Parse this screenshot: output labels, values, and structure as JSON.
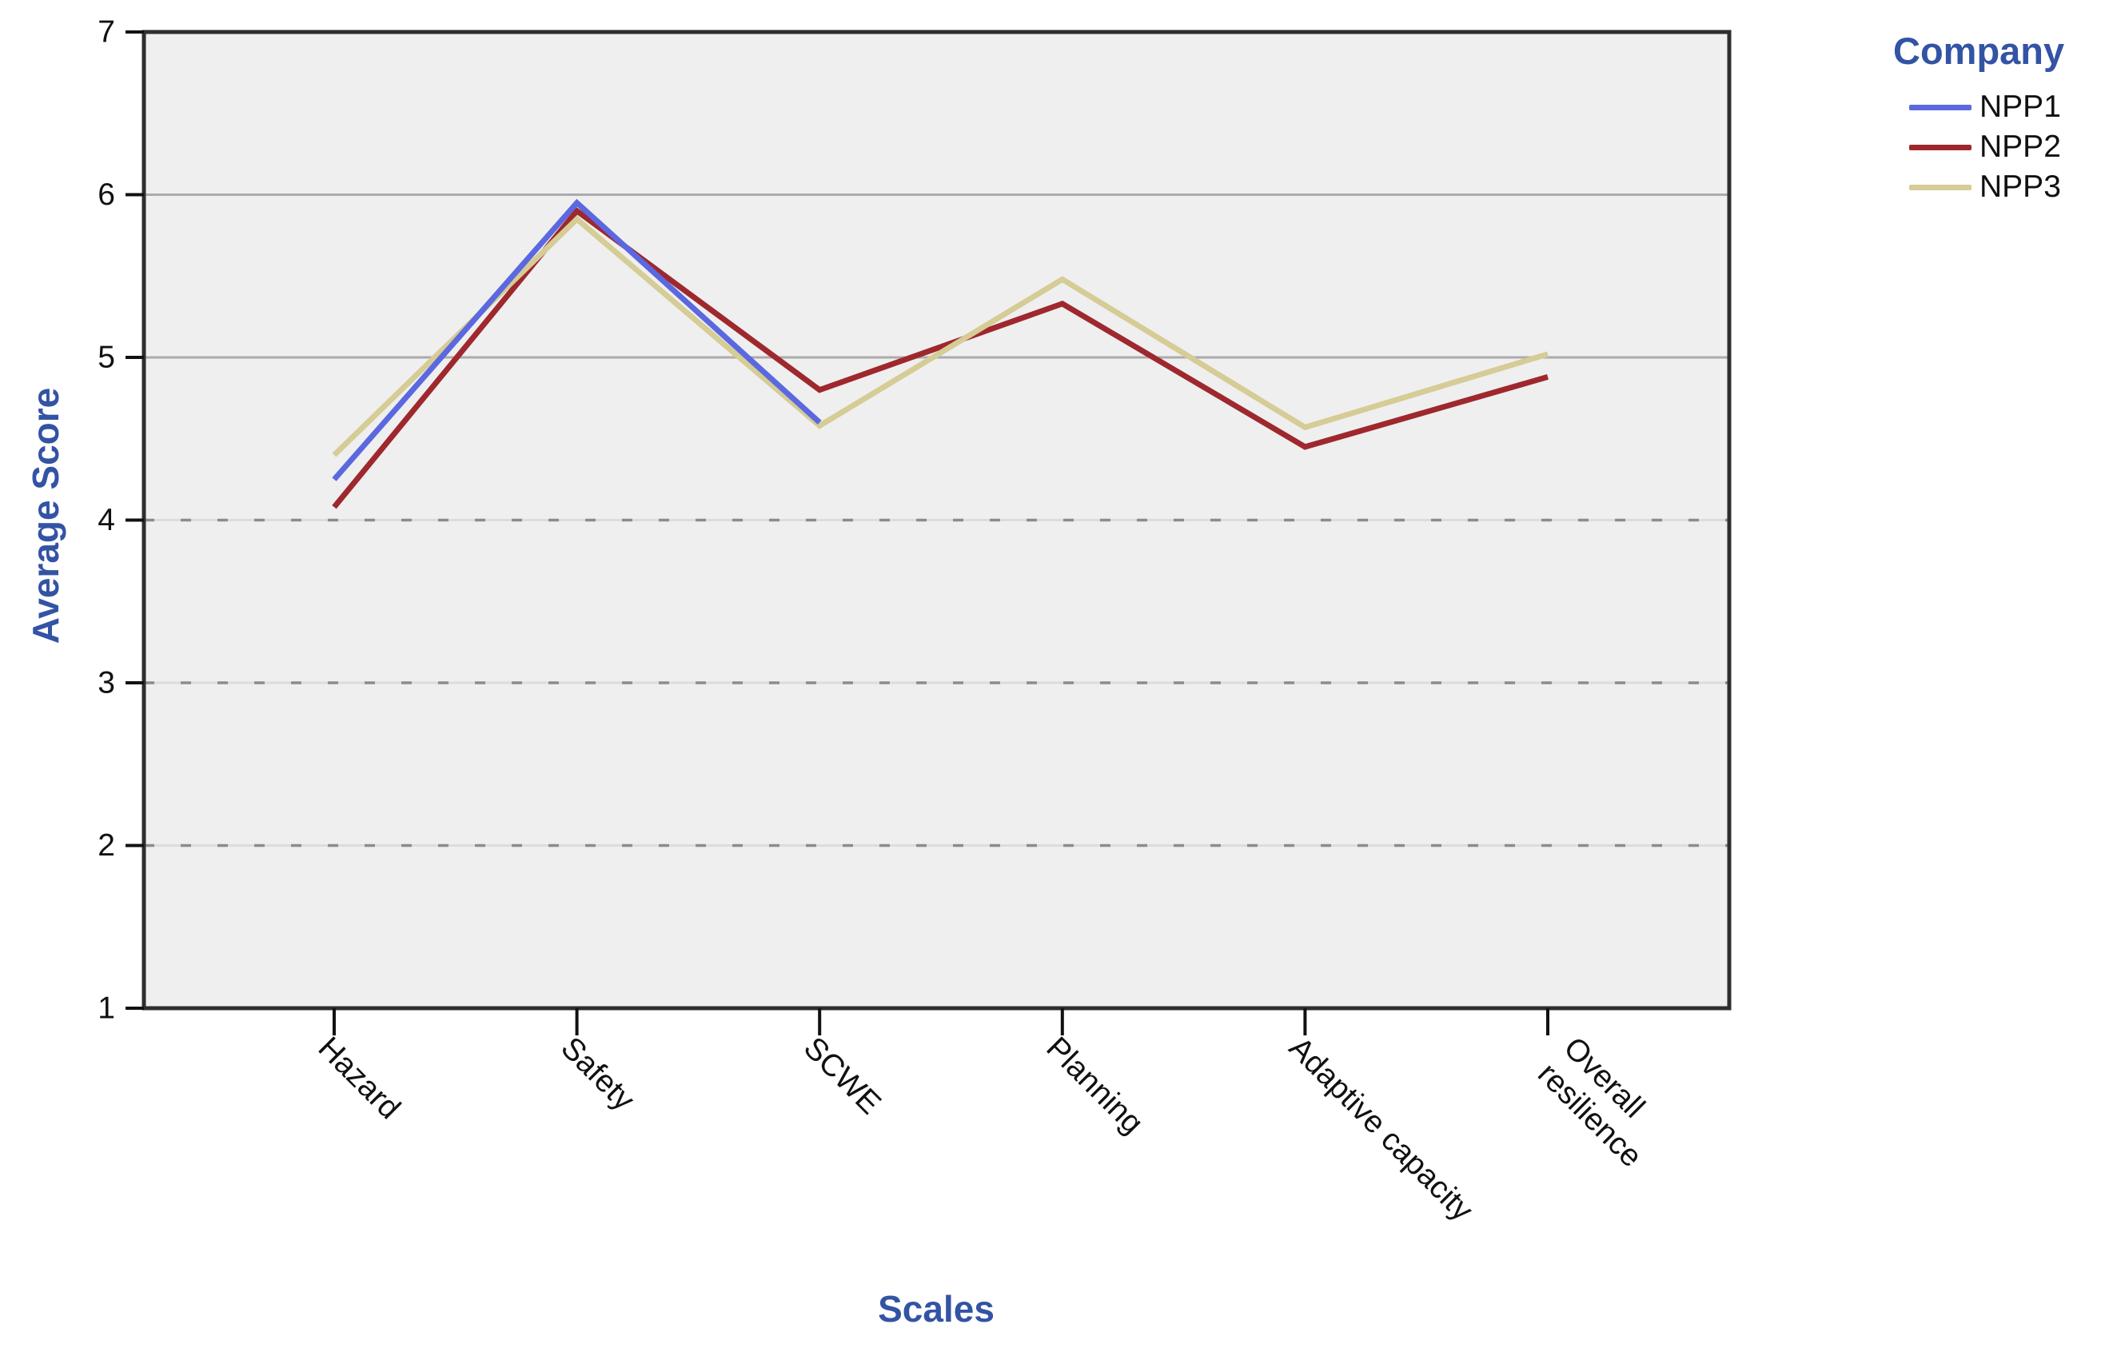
{
  "chart_data": {
    "type": "line",
    "title": "",
    "xlabel": "Scales",
    "ylabel": "Average Score",
    "ylim": [
      1,
      7
    ],
    "yticks": [
      1,
      2,
      3,
      4,
      5,
      6,
      7
    ],
    "grid": {
      "solid_at": [
        5,
        6
      ],
      "dashed_at": [
        2,
        3,
        4
      ]
    },
    "legend": {
      "title": "Company",
      "position": "top-right"
    },
    "categories": [
      "Hazard",
      "Safety",
      "SCWE",
      "Planning",
      "Adaptive capacity",
      "Overall resilience"
    ],
    "category_label_lines": [
      [
        "Hazard"
      ],
      [
        "Safety"
      ],
      [
        "SCWE"
      ],
      [
        "Planning"
      ],
      [
        "Adaptive capacity"
      ],
      [
        "Overall",
        "resilience"
      ]
    ],
    "series": [
      {
        "name": "NPP1",
        "color": "#5B68E0",
        "values": [
          4.25,
          5.95,
          4.6,
          null,
          null,
          null
        ]
      },
      {
        "name": "NPP2",
        "color": "#9E282D",
        "values": [
          4.08,
          5.9,
          4.8,
          5.33,
          4.45,
          4.88
        ]
      },
      {
        "name": "NPP3",
        "color": "#D5CC96",
        "values": [
          4.4,
          5.85,
          4.58,
          5.48,
          4.57,
          5.02
        ]
      }
    ]
  },
  "colors": {
    "accent_blue": "#3353A4",
    "plot_background": "#EFEFEF",
    "frame": "#2E2E2E",
    "grid_solid": "#ABABAB",
    "grid_dash": "#8C8C8C",
    "grid_dash_base": "#DCDCDC",
    "tick": "#111111",
    "tick_label": "#111111"
  }
}
